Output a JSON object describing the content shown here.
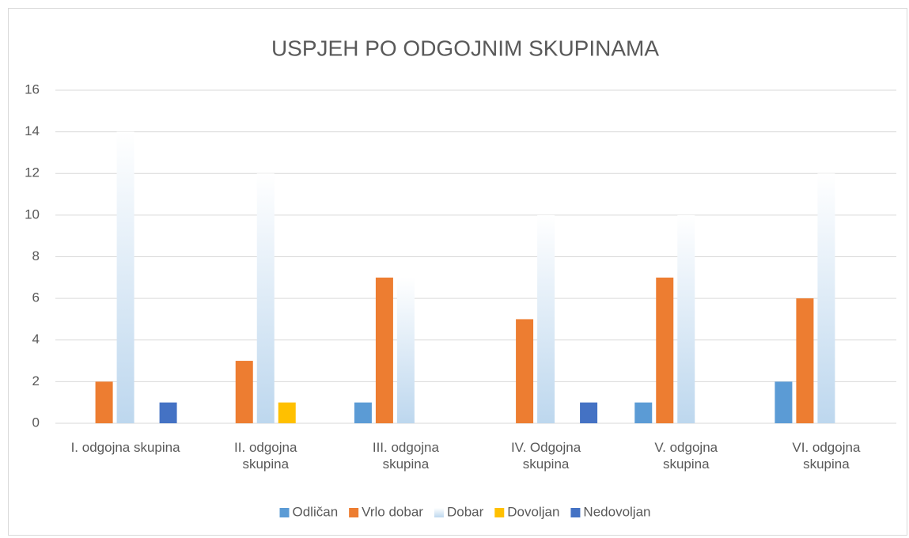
{
  "chart_data": {
    "type": "bar",
    "title": "USPJEH PO ODGOJNIM SKUPINAMA",
    "categories": [
      "I. odgojna skupina",
      "II. odgojna skupina",
      "III. odgojna skupina",
      "IV. Odgojna skupina",
      "V. odgojna skupina",
      "VI. odgojna skupina"
    ],
    "series": [
      {
        "name": "Odličan",
        "color": "#5b9bd5",
        "values": [
          0,
          0,
          1,
          0,
          1,
          2
        ]
      },
      {
        "name": "Vrlo dobar",
        "color": "#ed7d31",
        "values": [
          2,
          3,
          7,
          5,
          7,
          6
        ]
      },
      {
        "name": "Dobar",
        "color": "#bdd7ee",
        "values": [
          14,
          12,
          7,
          10,
          10,
          12
        ]
      },
      {
        "name": "Dovoljan",
        "color": "#ffc000",
        "values": [
          0,
          1,
          0,
          0,
          0,
          0
        ]
      },
      {
        "name": "Nedovoljan",
        "color": "#4472c4",
        "values": [
          1,
          0,
          0,
          1,
          0,
          0
        ]
      }
    ],
    "ylim": [
      0,
      16
    ],
    "yticks": [
      0,
      2,
      4,
      6,
      8,
      10,
      12,
      14,
      16
    ],
    "grid": true,
    "legend": "bottom"
  }
}
